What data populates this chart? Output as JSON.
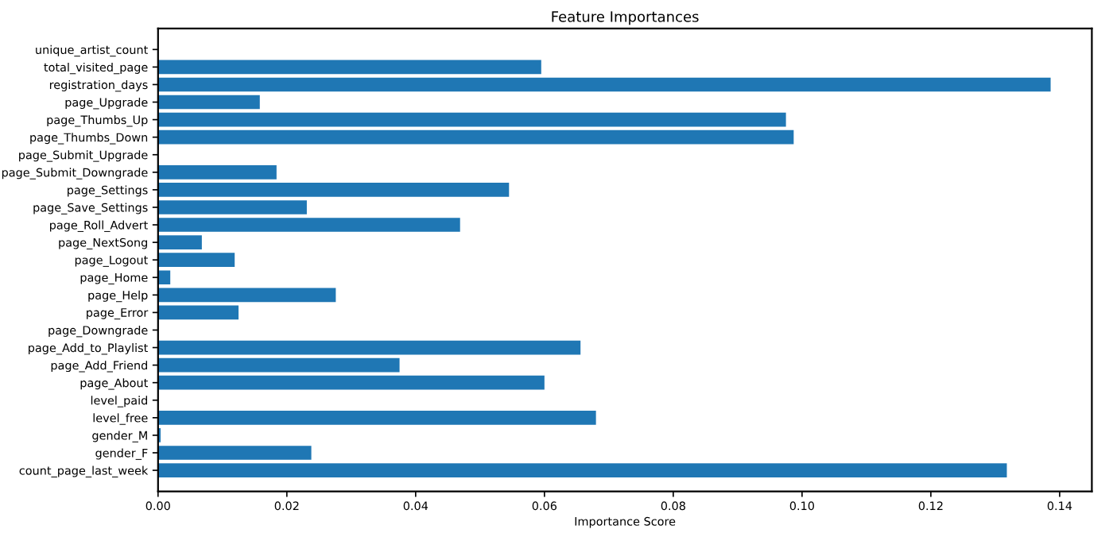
{
  "chart_data": {
    "type": "bar",
    "orientation": "horizontal",
    "title": "Feature Importances",
    "xlabel": "Importance Score",
    "categories": [
      "unique_artist_count",
      "total_visited_page",
      "registration_days",
      "page_Upgrade",
      "page_Thumbs_Up",
      "page_Thumbs_Down",
      "page_Submit_Upgrade",
      "page_Submit_Downgrade",
      "page_Settings",
      "page_Save_Settings",
      "page_Roll_Advert",
      "page_NextSong",
      "page_Logout",
      "page_Home",
      "page_Help",
      "page_Error",
      "page_Downgrade",
      "page_Add_to_Playlist",
      "page_Add_Friend",
      "page_About",
      "level_paid",
      "level_free",
      "gender_M",
      "gender_F",
      "count_page_last_week"
    ],
    "values": [
      0,
      0.0595,
      0.1386,
      0.0158,
      0.0975,
      0.0987,
      0,
      0.0184,
      0.0545,
      0.0231,
      0.0469,
      0.0068,
      0.0119,
      0.0019,
      0.0276,
      0.0125,
      0,
      0.0656,
      0.0375,
      0.06,
      0,
      0.068,
      0.0004,
      0.0238,
      0.1318
    ],
    "color": "#1f77b4",
    "xlim": [
      0,
      0.145
    ],
    "xticks": [
      {
        "value": 0,
        "label": "0.00"
      },
      {
        "value": 0.02,
        "label": "0.02"
      },
      {
        "value": 0.04,
        "label": "0.04"
      },
      {
        "value": 0.06,
        "label": "0.06"
      },
      {
        "value": 0.08,
        "label": "0.08"
      },
      {
        "value": 0.1,
        "label": "0.10"
      },
      {
        "value": 0.12,
        "label": "0.12"
      },
      {
        "value": 0.14,
        "label": "0.14"
      }
    ],
    "grid": false,
    "legend": false
  }
}
